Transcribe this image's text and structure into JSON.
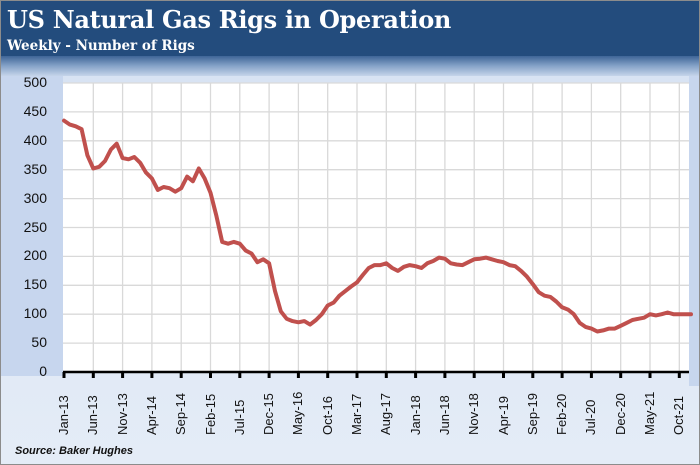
{
  "header": {
    "title": "US Natural Gas Rigs in Operation",
    "subtitle": "Weekly - Number of Rigs"
  },
  "footer": {
    "source": "Source: Baker Hughes"
  },
  "colors": {
    "header_bg": "#234c7d",
    "line": "#c0504d",
    "grid": "#d9d9d9",
    "panel": "#c7d6ee"
  },
  "chart_data": {
    "type": "line",
    "title": "US Natural Gas Rigs in Operation",
    "subtitle": "Weekly - Number of Rigs",
    "xlabel": "",
    "ylabel": "",
    "ylim": [
      0,
      500
    ],
    "yticks": [
      0,
      50,
      100,
      150,
      200,
      250,
      300,
      350,
      400,
      450,
      500
    ],
    "xtick_labels": [
      "Jan-13",
      "Jun-13",
      "Nov-13",
      "Apr-14",
      "Sep-14",
      "Feb-15",
      "Jul-15",
      "Dec-15",
      "May-16",
      "Oct-16",
      "Mar-17",
      "Aug-17",
      "Jan-18",
      "Jun-18",
      "Nov-18",
      "Apr-19",
      "Sep-19",
      "Feb-20",
      "Jul-20",
      "Dec-20",
      "May-21",
      "Oct-21"
    ],
    "grid": true,
    "legend": null,
    "source": "Source: Baker Hughes",
    "series": [
      {
        "name": "US Natural Gas Rigs",
        "color": "#c0504d",
        "x_start": "Jan-13",
        "x_step": "1 month",
        "values": [
          435,
          428,
          425,
          420,
          375,
          352,
          355,
          365,
          385,
          395,
          370,
          368,
          372,
          362,
          345,
          335,
          315,
          320,
          318,
          312,
          318,
          338,
          330,
          352,
          335,
          310,
          270,
          225,
          222,
          225,
          222,
          210,
          205,
          190,
          195,
          188,
          140,
          105,
          92,
          88,
          86,
          88,
          82,
          90,
          100,
          115,
          120,
          132,
          140,
          148,
          155,
          168,
          180,
          185,
          185,
          188,
          180,
          175,
          182,
          185,
          183,
          180,
          188,
          192,
          198,
          196,
          188,
          186,
          185,
          190,
          195,
          196,
          198,
          195,
          192,
          190,
          185,
          183,
          175,
          165,
          152,
          138,
          132,
          130,
          122,
          112,
          108,
          100,
          85,
          78,
          75,
          70,
          72,
          75,
          75,
          80,
          85,
          90,
          92,
          94,
          100,
          98,
          100,
          103,
          100,
          100,
          100,
          100
        ]
      }
    ]
  }
}
